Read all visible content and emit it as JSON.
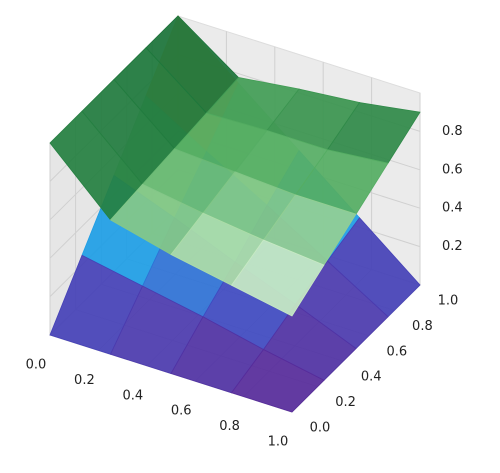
{
  "chart_data": {
    "type": "surface3d",
    "x": [
      0,
      0.25,
      0.5,
      0.75,
      1
    ],
    "y": [
      0,
      0.25,
      0.5,
      0.75,
      1
    ],
    "xlim": [
      0,
      1
    ],
    "ylim": [
      0,
      1
    ],
    "zlim": [
      0,
      1
    ],
    "xticks": [
      {
        "value": 0,
        "label": "0.0"
      },
      0.2,
      0.4,
      0.6,
      0.8,
      {
        "value": 1,
        "label": "1.0"
      }
    ],
    "yticks": [
      {
        "value": 0,
        "label": "0.0"
      },
      0.2,
      0.4,
      0.6,
      0.8,
      {
        "value": 1,
        "label": "1.0"
      }
    ],
    "zticks": [
      0.2,
      0.4,
      0.6,
      0.8
    ],
    "grid": true,
    "series": [
      {
        "colormap": "rainbow",
        "values": [
          [
            0,
            0.25,
            0.5,
            0.75,
            1
          ],
          [
            0,
            0.19,
            0.38,
            0.56,
            0.75
          ],
          [
            0,
            0.13,
            0.25,
            0.38,
            0.5
          ],
          [
            0,
            0.06,
            0.13,
            0.19,
            0.25
          ],
          [
            0,
            0,
            0,
            0,
            0
          ]
        ]
      },
      {
        "colormap": "Greens",
        "values": [
          [
            1,
            1,
            1,
            1,
            1
          ],
          [
            0.7,
            0.72,
            0.74,
            0.76,
            0.78
          ],
          [
            0.62,
            0.67,
            0.72,
            0.77,
            0.82
          ],
          [
            0.56,
            0.63,
            0.7,
            0.77,
            0.85
          ],
          [
            0.5,
            0.6,
            0.7,
            0.8,
            0.9
          ]
        ]
      }
    ]
  }
}
